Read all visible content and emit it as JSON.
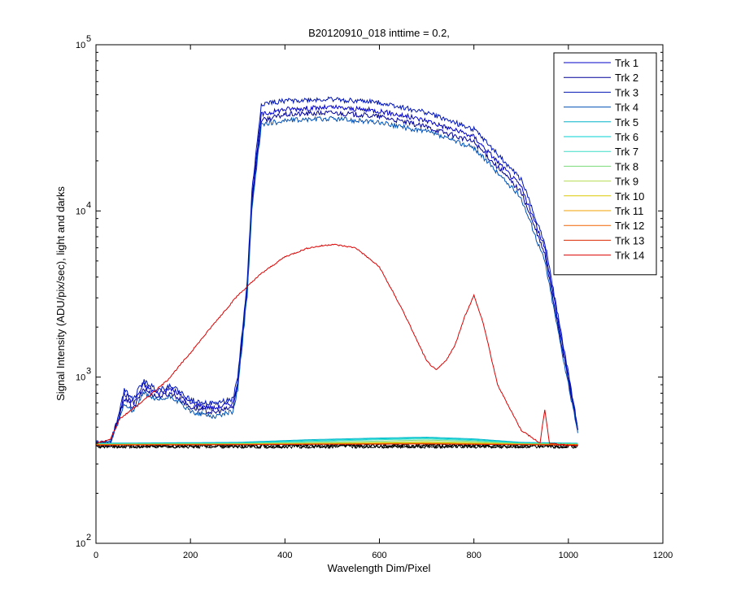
{
  "chart_data": {
    "type": "line",
    "title": "B20120910_018 inttime = 0.2,",
    "xlabel": "Wavelength Dim/Pixel",
    "ylabel": "Signal Intensity (ADU/pix/sec), light and darks",
    "xlim": [
      0,
      1200
    ],
    "ylim": [
      100,
      100000
    ],
    "yscale": "log",
    "x_ticks": [
      "0",
      "200",
      "400",
      "600",
      "800",
      "1000",
      "1200"
    ],
    "y_ticks": [
      {
        "base": "10",
        "exp": "2"
      },
      {
        "base": "10",
        "exp": "3"
      },
      {
        "base": "10",
        "exp": "4"
      },
      {
        "base": "10",
        "exp": "5"
      }
    ],
    "legend_position": "top-right",
    "grid": false,
    "series": [
      {
        "name": "Trk 1",
        "color": "#0000c8",
        "x": [
          0,
          30,
          50,
          60,
          80,
          100,
          130,
          160,
          200,
          250,
          290,
          300,
          320,
          330,
          350,
          400,
          500,
          600,
          700,
          800,
          900,
          950,
          1000,
          1020
        ],
        "y": [
          400,
          400,
          600,
          800,
          700,
          900,
          800,
          850,
          700,
          650,
          700,
          950,
          3500,
          12000,
          38000,
          41000,
          42000,
          40000,
          35000,
          28000,
          14000,
          6000,
          1000,
          480
        ]
      },
      {
        "name": "Trk 2",
        "color": "#00009a",
        "x": [
          0,
          30,
          50,
          60,
          80,
          100,
          130,
          160,
          200,
          250,
          290,
          300,
          320,
          330,
          350,
          400,
          500,
          600,
          700,
          800,
          900,
          950,
          1000,
          1020
        ],
        "y": [
          400,
          400,
          580,
          750,
          650,
          850,
          760,
          800,
          660,
          610,
          660,
          900,
          3300,
          11000,
          35000,
          38000,
          39000,
          37000,
          32000,
          26000,
          13000,
          5500,
          950,
          470
        ]
      },
      {
        "name": "Trk 3",
        "color": "#0014b4",
        "x": [
          0,
          30,
          50,
          60,
          80,
          100,
          130,
          160,
          200,
          250,
          290,
          300,
          320,
          330,
          350,
          400,
          500,
          600,
          700,
          800,
          900,
          950,
          1000,
          1020
        ],
        "y": [
          400,
          400,
          620,
          850,
          740,
          950,
          840,
          890,
          730,
          690,
          740,
          1000,
          3700,
          13000,
          44000,
          46000,
          47000,
          45000,
          39000,
          31000,
          15500,
          6500,
          1050,
          490
        ]
      },
      {
        "name": "Trk 4",
        "color": "#0050b4",
        "x": [
          0,
          30,
          50,
          60,
          80,
          100,
          130,
          160,
          200,
          250,
          290,
          300,
          320,
          330,
          350,
          400,
          500,
          600,
          700,
          800,
          900,
          950,
          1000,
          1020
        ],
        "y": [
          400,
          400,
          560,
          700,
          620,
          800,
          720,
          760,
          620,
          580,
          620,
          850,
          3100,
          10000,
          33000,
          35000,
          36000,
          34000,
          30000,
          24000,
          12000,
          5000,
          900,
          460
        ]
      },
      {
        "name": "Trk 5",
        "color": "#00b4c8",
        "x": [
          0,
          300,
          450,
          600,
          700,
          800,
          900,
          1020
        ],
        "y": [
          400,
          405,
          420,
          430,
          435,
          425,
          405,
          400
        ]
      },
      {
        "name": "Trk 6",
        "color": "#00d2d2",
        "x": [
          0,
          300,
          450,
          600,
          700,
          800,
          900,
          1020
        ],
        "y": [
          398,
          402,
          415,
          425,
          430,
          420,
          402,
          398
        ]
      },
      {
        "name": "Trk 7",
        "color": "#3cdcc8",
        "x": [
          0,
          300,
          450,
          600,
          700,
          800,
          900,
          1020
        ],
        "y": [
          396,
          400,
          410,
          420,
          425,
          415,
          400,
          396
        ]
      },
      {
        "name": "Trk 8",
        "color": "#78dc78",
        "x": [
          0,
          300,
          450,
          600,
          700,
          800,
          900,
          1020
        ],
        "y": [
          395,
          398,
          405,
          412,
          418,
          410,
          398,
          395
        ]
      },
      {
        "name": "Trk 9",
        "color": "#b4dc50",
        "x": [
          0,
          300,
          450,
          600,
          700,
          800,
          900,
          1020
        ],
        "y": [
          394,
          396,
          400,
          405,
          410,
          404,
          396,
          394
        ]
      },
      {
        "name": "Trk 10",
        "color": "#dcc800",
        "x": [
          0,
          300,
          450,
          600,
          700,
          800,
          900,
          1020
        ],
        "y": [
          393,
          395,
          398,
          402,
          404,
          400,
          395,
          393
        ]
      },
      {
        "name": "Trk 11",
        "color": "#f0a000",
        "x": [
          0,
          300,
          450,
          600,
          700,
          800,
          900,
          1020
        ],
        "y": [
          392,
          394,
          396,
          398,
          400,
          397,
          394,
          392
        ]
      },
      {
        "name": "Trk 12",
        "color": "#f06400",
        "x": [
          0,
          300,
          450,
          600,
          700,
          800,
          900,
          1020
        ],
        "y": [
          391,
          393,
          395,
          396,
          397,
          395,
          393,
          391
        ]
      },
      {
        "name": "Trk 13",
        "color": "#dc2800",
        "x": [
          0,
          300,
          450,
          600,
          700,
          800,
          900,
          1020
        ],
        "y": [
          390,
          392,
          394,
          395,
          396,
          394,
          392,
          390
        ]
      },
      {
        "name": "Trk 14",
        "color": "#dc0000",
        "x": [
          0,
          30,
          50,
          100,
          150,
          200,
          250,
          300,
          350,
          400,
          450,
          500,
          550,
          600,
          650,
          700,
          720,
          740,
          760,
          780,
          800,
          820,
          850,
          900,
          940,
          950,
          960,
          1000,
          1020
        ],
        "y": [
          400,
          420,
          560,
          720,
          950,
          1400,
          2100,
          3100,
          4200,
          5300,
          6000,
          6300,
          6000,
          4600,
          2500,
          1250,
          1100,
          1250,
          1550,
          2300,
          3100,
          2100,
          900,
          480,
          400,
          640,
          400,
          390,
          390
        ]
      }
    ],
    "darks": {
      "color": "#000000",
      "level": 385,
      "x_range": [
        0,
        1020
      ]
    }
  }
}
